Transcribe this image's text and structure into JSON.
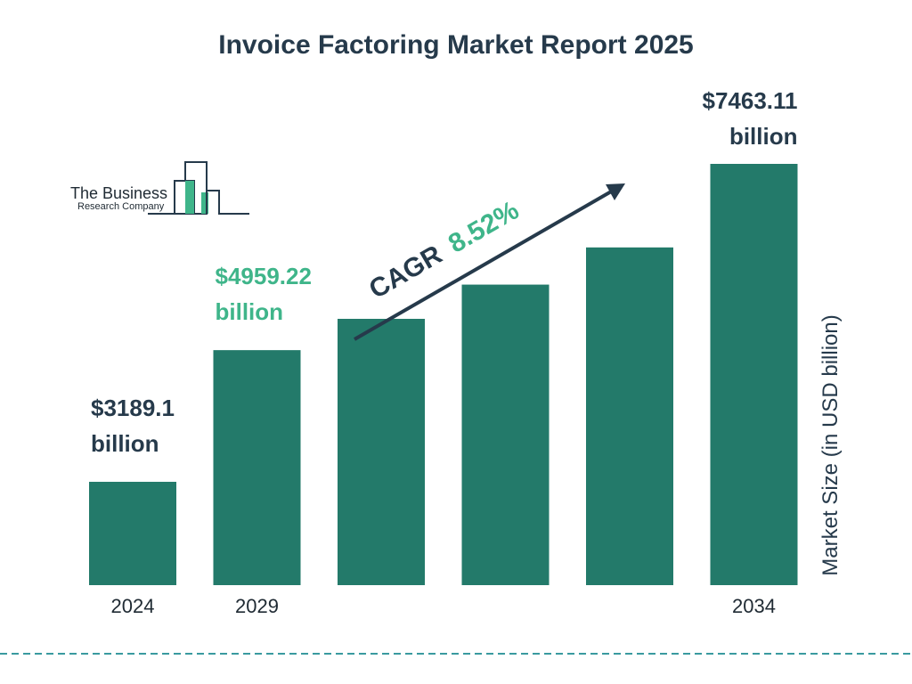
{
  "logo": {
    "line1": "The Business",
    "line2": "Research Company"
  },
  "colors": {
    "bar": "#237a6a",
    "dark_text": "#263a4b",
    "accent_green": "#3fb58a",
    "dashed_line": "#3a9aa0"
  },
  "cagr": {
    "label": "CAGR",
    "value": "8.52%"
  },
  "chart_data": {
    "type": "bar",
    "title": "Invoice Factoring Market Report 2025",
    "ylabel": "Market Size (in USD billion)",
    "categories": [
      "2024",
      "2029",
      "",
      "",
      "",
      "2034"
    ],
    "values": [
      3189.1,
      4959.22,
      5380,
      5840,
      6340,
      7463.11
    ],
    "value_labels": [
      [
        "$3189.1",
        "billion"
      ],
      [
        "$4959.22",
        "billion"
      ],
      null,
      null,
      null,
      [
        "$7463.11",
        "billion"
      ]
    ],
    "value_label_colors": [
      "dark",
      "green",
      null,
      null,
      null,
      "dark"
    ],
    "ylim": [
      1800,
      7463.11
    ],
    "grid": false,
    "legend": "none"
  }
}
